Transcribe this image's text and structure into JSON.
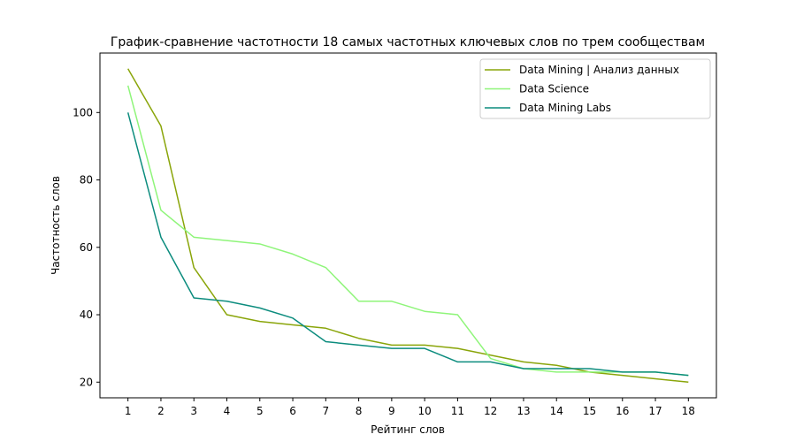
{
  "chart_data": {
    "type": "line",
    "title": "График-сравнение частотности 18 самых частотных ключевых слов по трем сообществам",
    "xlabel": "Рейтинг слов",
    "ylabel": "Частотность слов",
    "x": [
      1,
      2,
      3,
      4,
      5,
      6,
      7,
      8,
      9,
      10,
      11,
      12,
      13,
      14,
      15,
      16,
      17,
      18
    ],
    "x_ticks": [
      "1",
      "2",
      "3",
      "4",
      "5",
      "6",
      "7",
      "8",
      "9",
      "10",
      "11",
      "12",
      "13",
      "14",
      "15",
      "16",
      "17",
      "18"
    ],
    "y_ticks": [
      "20",
      "40",
      "60",
      "80",
      "100"
    ],
    "xlim": [
      0.15,
      18.85
    ],
    "ylim": [
      15.35,
      117.65
    ],
    "grid": false,
    "legend_position": "top-right",
    "series": [
      {
        "name": "Data Mining | Анализ данных",
        "color": "#8aa50a",
        "values": [
          113,
          96,
          54,
          40,
          38,
          37,
          36,
          33,
          31,
          31,
          30,
          28,
          26,
          25,
          23,
          22,
          21,
          20
        ]
      },
      {
        "name": "Data Science",
        "color": "#8ff57a",
        "values": [
          108,
          71,
          63,
          62,
          61,
          58,
          54,
          44,
          44,
          41,
          40,
          27,
          24,
          23,
          23,
          23,
          23,
          22
        ]
      },
      {
        "name": "Data Mining Labs",
        "color": "#0c8c7e",
        "values": [
          100,
          63,
          45,
          44,
          42,
          39,
          32,
          31,
          30,
          30,
          26,
          26,
          24,
          24,
          24,
          23,
          23,
          22
        ]
      }
    ]
  }
}
